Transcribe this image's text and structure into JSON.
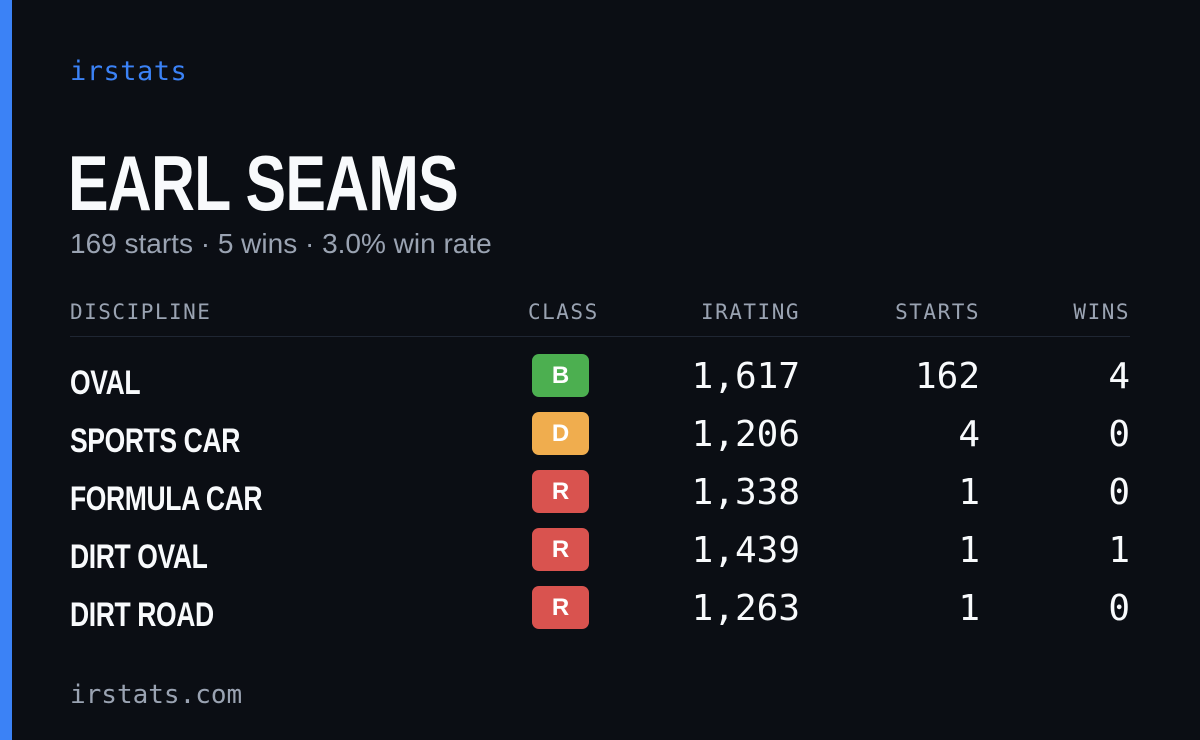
{
  "brand": "irstats",
  "driver": {
    "name": "EARL SEAMS",
    "summary": "169 starts · 5 wins · 3.0% win rate"
  },
  "table": {
    "headers": {
      "discipline": "DISCIPLINE",
      "class": "CLASS",
      "irating": "IRATING",
      "starts": "STARTS",
      "wins": "WINS"
    },
    "rows": [
      {
        "discipline": "OVAL",
        "class": "B",
        "irating": "1,617",
        "starts": "162",
        "wins": "4"
      },
      {
        "discipline": "SPORTS CAR",
        "class": "D",
        "irating": "1,206",
        "starts": "4",
        "wins": "0"
      },
      {
        "discipline": "FORMULA CAR",
        "class": "R",
        "irating": "1,338",
        "starts": "1",
        "wins": "0"
      },
      {
        "discipline": "DIRT OVAL",
        "class": "R",
        "irating": "1,439",
        "starts": "1",
        "wins": "1"
      },
      {
        "discipline": "DIRT ROAD",
        "class": "R",
        "irating": "1,263",
        "starts": "1",
        "wins": "0"
      }
    ]
  },
  "footer": "irstats.com",
  "colors": {
    "accent": "#3b82f6",
    "class_B": "#4caf50",
    "class_D": "#f0ad4e",
    "class_R": "#d9534f"
  }
}
